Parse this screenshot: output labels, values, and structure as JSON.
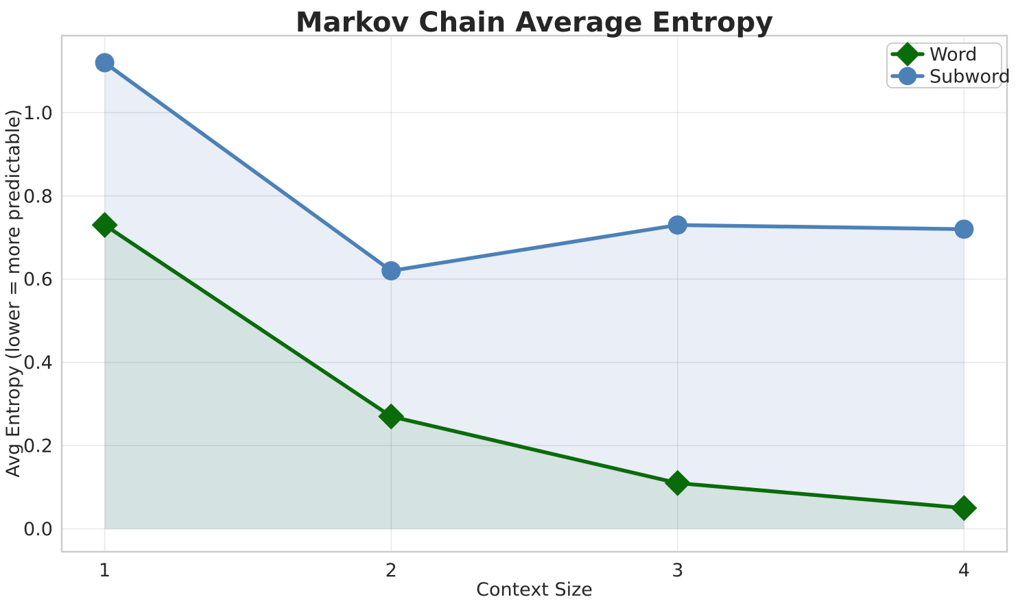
{
  "chart_data": {
    "type": "line",
    "title": "Markov Chain Average Entropy",
    "xlabel": "Context Size",
    "ylabel": "Avg Entropy (lower = more predictable)",
    "x": [
      1,
      2,
      3,
      4
    ],
    "series": [
      {
        "name": "Word",
        "values": [
          0.73,
          0.27,
          0.11,
          0.05
        ],
        "color": "#0a6b0a",
        "marker": "diamond",
        "area_fill": "rgba(0,100,0,0.085)"
      },
      {
        "name": "Subword",
        "values": [
          1.12,
          0.62,
          0.73,
          0.72
        ],
        "color": "#4c81b7",
        "marker": "circle",
        "area_fill": "#e9eef7"
      }
    ],
    "xlim": [
      0.85,
      4.15
    ],
    "ylim": [
      -0.055,
      1.185
    ],
    "xticks": {
      "values": [
        1,
        2,
        3,
        4
      ],
      "labels": [
        "1",
        "2",
        "3",
        "4"
      ]
    },
    "yticks": {
      "values": [
        0,
        0.2,
        0.4,
        0.6,
        0.8,
        1.0
      ],
      "labels": [
        "0.0",
        "0.2",
        "0.4",
        "0.6",
        "0.8",
        "1.0"
      ]
    },
    "grid": true,
    "grid_color": "rgba(0,0,0,0.08)",
    "spine_color": "#cccccc",
    "area_baseline": 0,
    "legend": {
      "position": "upper right",
      "entries": [
        "Word",
        "Subword"
      ]
    }
  }
}
